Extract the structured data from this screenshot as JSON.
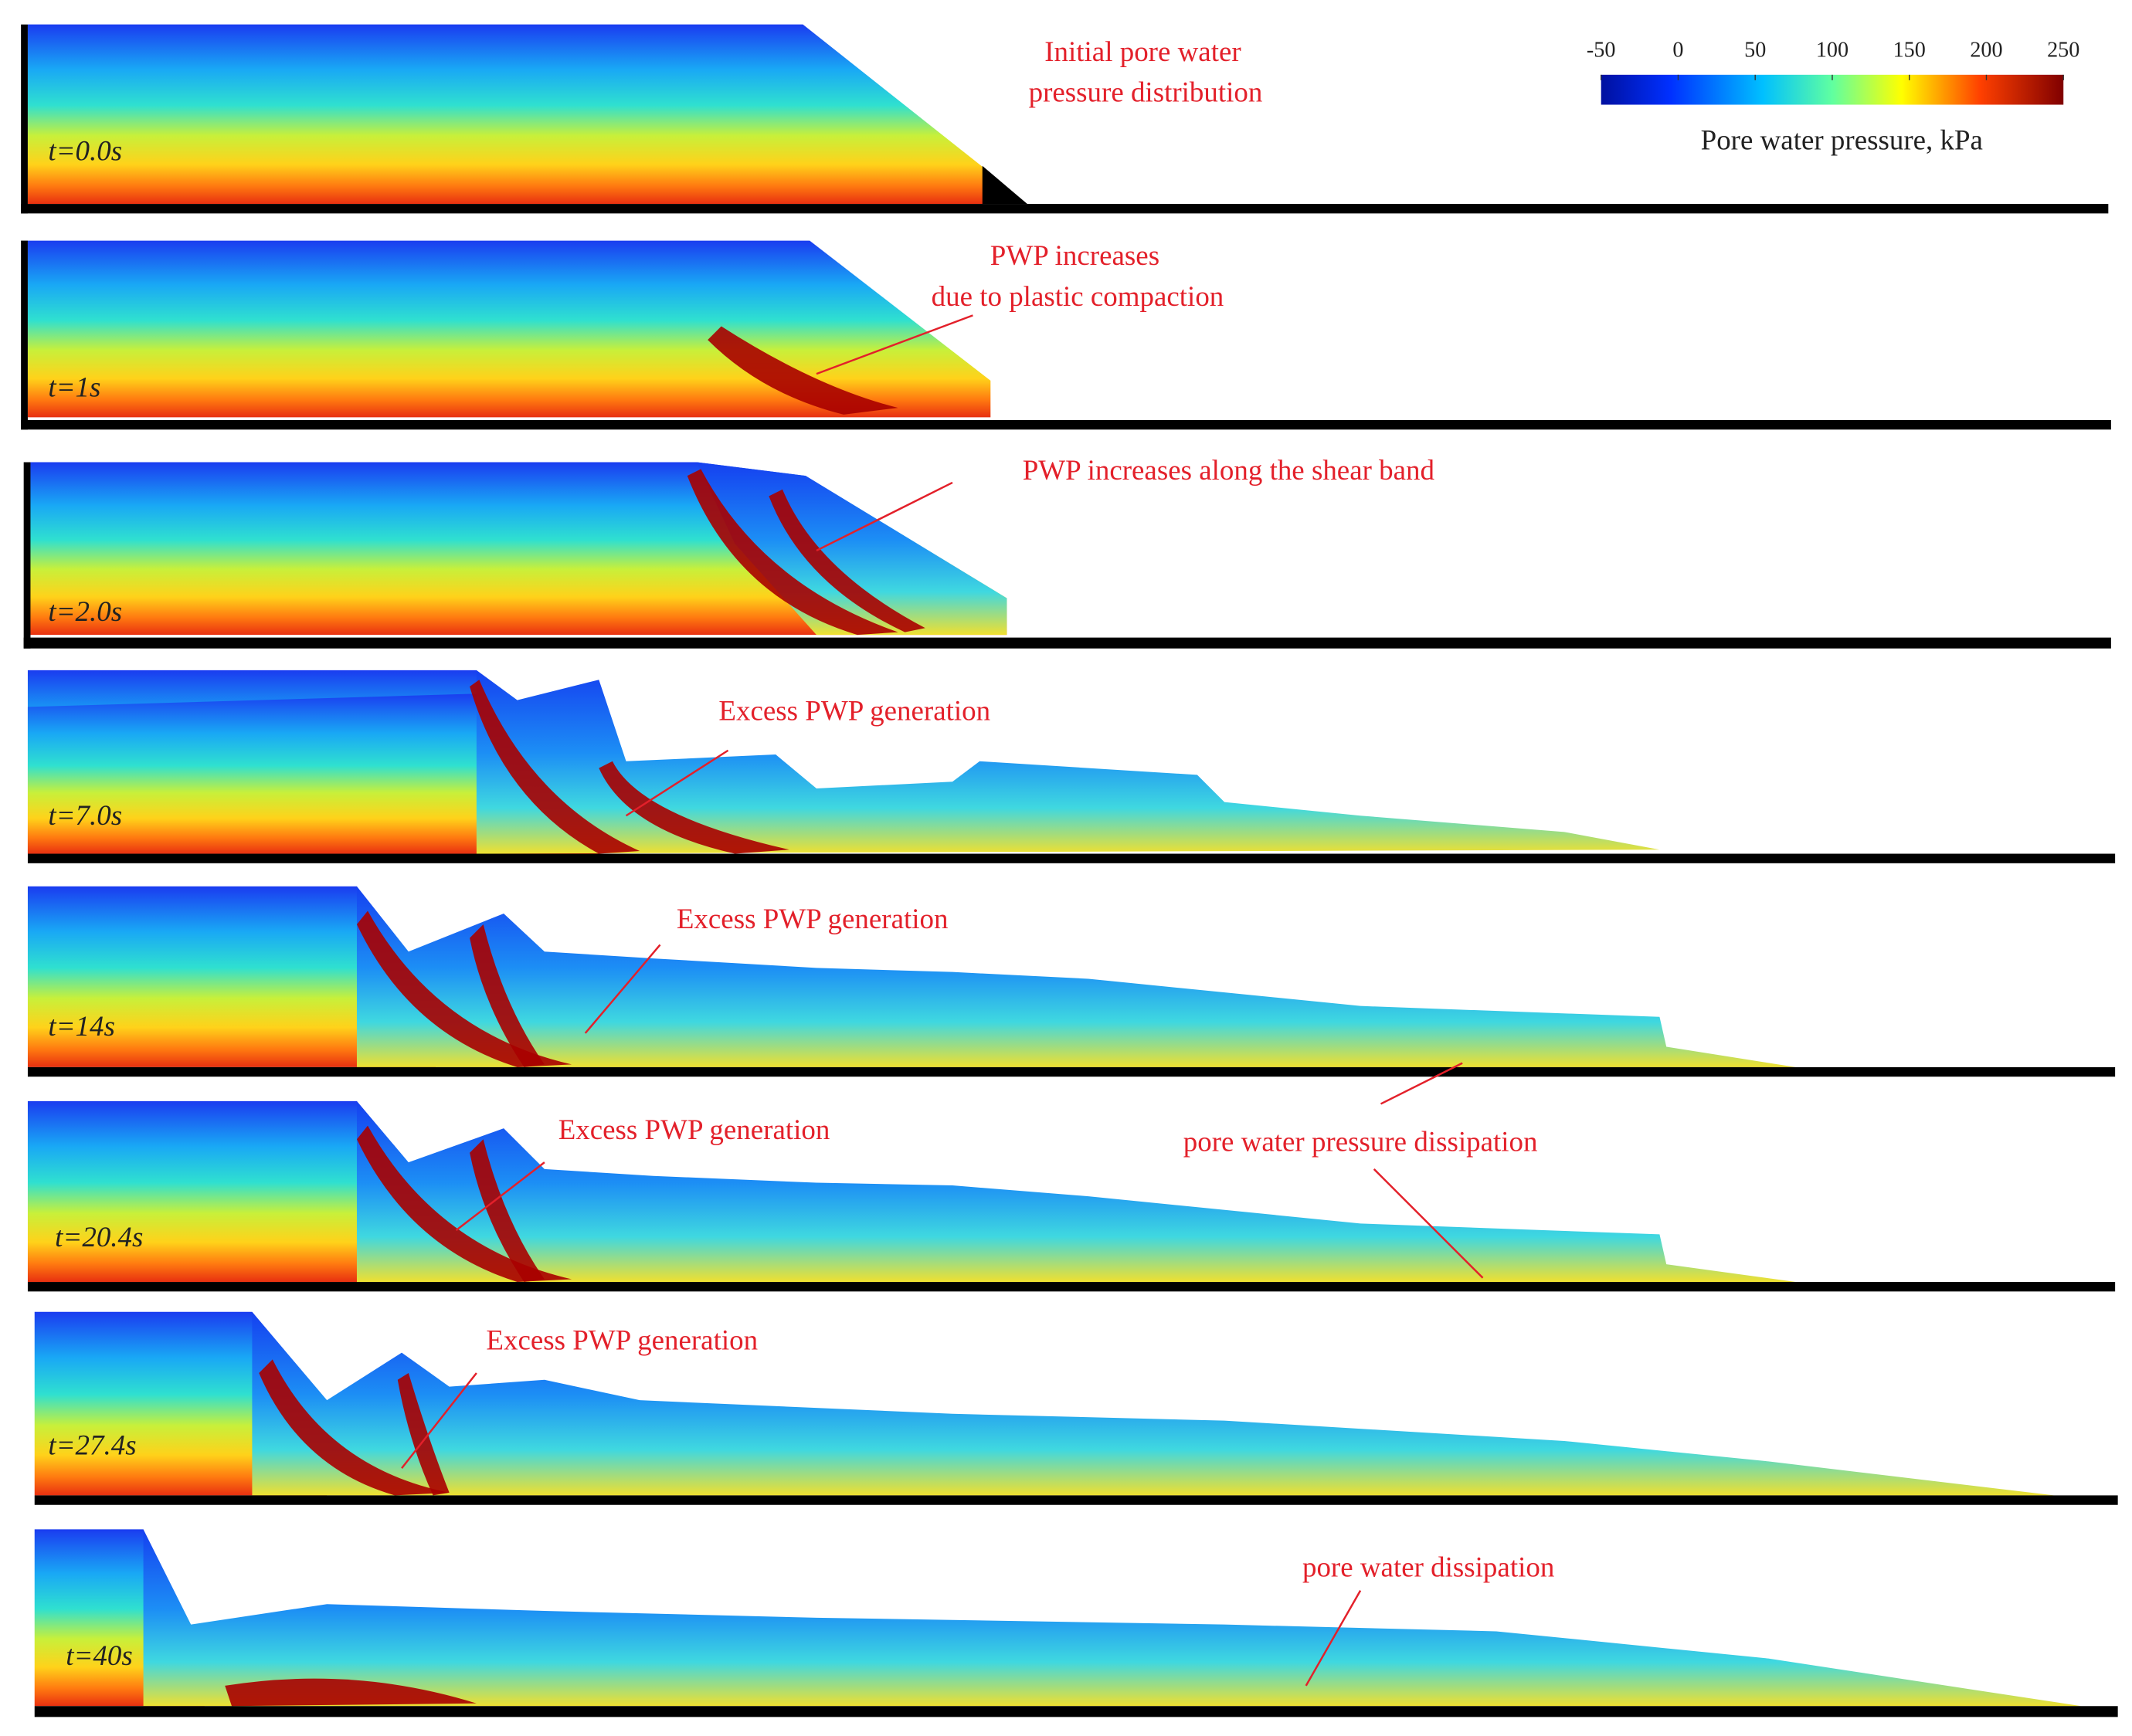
{
  "colorbar": {
    "range": [
      -50,
      250
    ],
    "ticks": [
      -50,
      0,
      50,
      100,
      150,
      200,
      250
    ],
    "label": "Pore water pressure, kPa"
  },
  "panels": [
    {
      "time": "t=0.0s",
      "annotations": [
        "Initial pore water",
        "pressure distribution"
      ]
    },
    {
      "time": "t=1s",
      "annotations": [
        "PWP increases",
        "due to plastic compaction"
      ]
    },
    {
      "time": "t=2.0s",
      "annotations": [
        "PWP increases along the shear band"
      ]
    },
    {
      "time": "t=7.0s",
      "annotations": [
        "Excess PWP generation"
      ]
    },
    {
      "time": "t=14s",
      "annotations": [
        "Excess PWP generation"
      ]
    },
    {
      "time": "t=20.4s",
      "annotations": [
        "Excess PWP generation",
        "pore water pressure dissipation"
      ]
    },
    {
      "time": "t=27.4s",
      "annotations": [
        "Excess PWP generation"
      ]
    },
    {
      "time": "t=40s",
      "annotations": [
        "pore water dissipation"
      ]
    }
  ]
}
